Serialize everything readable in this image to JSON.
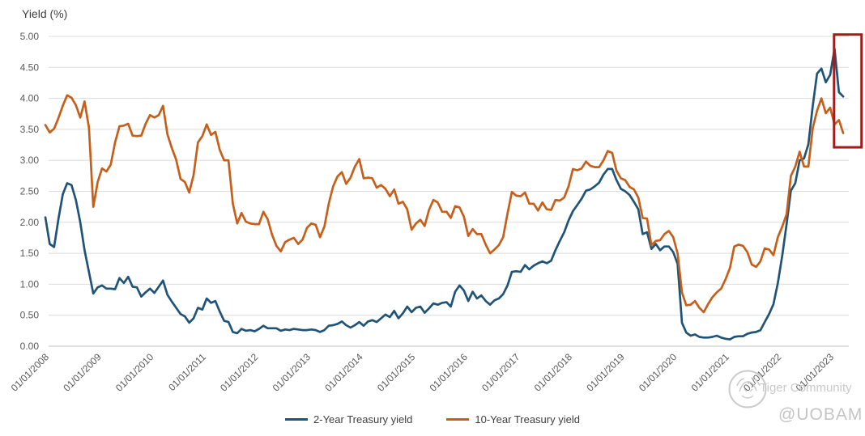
{
  "title": "Yield (%)",
  "watermark": {
    "community_label": "Tiger Community",
    "account_handle": "@UOBAM"
  },
  "chart_data": {
    "type": "line",
    "title": "Yield (%)",
    "ylabel": "Yield (%)",
    "xlabel": "",
    "ylim": [
      0.0,
      5.0
    ],
    "ytick_step": 0.5,
    "y_tick_labels": [
      "0.00",
      "0.50",
      "1.00",
      "1.50",
      "2.00",
      "2.50",
      "3.00",
      "3.50",
      "4.00",
      "4.50",
      "5.00"
    ],
    "x_tick_labels": [
      "01/01/2008",
      "01/01/2009",
      "01/01/2010",
      "01/01/2011",
      "01/01/2012",
      "01/01/2013",
      "01/01/2014",
      "01/01/2015",
      "01/01/2016",
      "01/01/2017",
      "01/01/2018",
      "01/01/2019",
      "01/01/2020",
      "01/01/2021",
      "01/01/2022",
      "01/01/2023"
    ],
    "frequency": "monthly",
    "grid": "horizontal",
    "gridline_color": "#DCDCDC",
    "axis_text_color": "#595959",
    "legend_position": "bottom-center",
    "series": [
      {
        "name": "2-Year Treasury yield",
        "color": "#1F5478",
        "values": [
          2.08,
          1.65,
          1.6,
          2.05,
          2.45,
          2.63,
          2.6,
          2.36,
          2.0,
          1.55,
          1.2,
          0.85,
          0.95,
          0.98,
          0.93,
          0.93,
          0.92,
          1.1,
          1.02,
          1.12,
          0.96,
          0.95,
          0.8,
          0.87,
          0.93,
          0.86,
          0.96,
          1.06,
          0.83,
          0.72,
          0.62,
          0.52,
          0.48,
          0.38,
          0.45,
          0.62,
          0.59,
          0.77,
          0.7,
          0.73,
          0.56,
          0.41,
          0.39,
          0.23,
          0.21,
          0.28,
          0.25,
          0.26,
          0.24,
          0.28,
          0.33,
          0.29,
          0.29,
          0.29,
          0.25,
          0.27,
          0.26,
          0.28,
          0.27,
          0.26,
          0.26,
          0.27,
          0.26,
          0.23,
          0.26,
          0.33,
          0.34,
          0.36,
          0.4,
          0.34,
          0.3,
          0.34,
          0.39,
          0.33,
          0.4,
          0.42,
          0.39,
          0.45,
          0.51,
          0.47,
          0.57,
          0.45,
          0.53,
          0.64,
          0.55,
          0.62,
          0.64,
          0.54,
          0.61,
          0.69,
          0.67,
          0.7,
          0.71,
          0.64,
          0.88,
          0.98,
          0.9,
          0.73,
          0.88,
          0.77,
          0.82,
          0.73,
          0.67,
          0.74,
          0.77,
          0.84,
          0.98,
          1.2,
          1.21,
          1.2,
          1.31,
          1.24,
          1.3,
          1.34,
          1.37,
          1.34,
          1.38,
          1.55,
          1.7,
          1.84,
          2.03,
          2.18,
          2.28,
          2.38,
          2.51,
          2.53,
          2.58,
          2.64,
          2.77,
          2.86,
          2.86,
          2.68,
          2.54,
          2.5,
          2.44,
          2.33,
          2.21,
          1.81,
          1.84,
          1.57,
          1.65,
          1.55,
          1.61,
          1.61,
          1.52,
          1.33,
          0.38,
          0.22,
          0.17,
          0.19,
          0.15,
          0.14,
          0.14,
          0.15,
          0.17,
          0.14,
          0.12,
          0.11,
          0.15,
          0.16,
          0.16,
          0.2,
          0.22,
          0.23,
          0.26,
          0.39,
          0.52,
          0.68,
          1.02,
          1.46,
          1.97,
          2.51,
          2.63,
          3.0,
          3.03,
          3.26,
          3.88,
          4.4,
          4.48,
          4.26,
          4.38,
          4.8,
          4.1,
          4.03
        ]
      },
      {
        "name": "10-Year Treasury yield",
        "color": "#C55F1A",
        "values": [
          3.57,
          3.45,
          3.51,
          3.68,
          3.88,
          4.05,
          4.01,
          3.89,
          3.69,
          3.95,
          3.53,
          2.25,
          2.65,
          2.87,
          2.82,
          2.93,
          3.29,
          3.55,
          3.56,
          3.59,
          3.4,
          3.39,
          3.4,
          3.59,
          3.73,
          3.69,
          3.73,
          3.88,
          3.42,
          3.2,
          3.01,
          2.7,
          2.65,
          2.48,
          2.76,
          3.29,
          3.39,
          3.58,
          3.41,
          3.46,
          3.17,
          3.0,
          3.0,
          2.3,
          1.98,
          2.15,
          2.01,
          1.98,
          1.97,
          1.97,
          2.17,
          2.05,
          1.8,
          1.62,
          1.53,
          1.68,
          1.72,
          1.75,
          1.65,
          1.72,
          1.91,
          1.98,
          1.96,
          1.76,
          1.93,
          2.3,
          2.58,
          2.74,
          2.81,
          2.62,
          2.72,
          2.9,
          3.02,
          2.71,
          2.72,
          2.71,
          2.56,
          2.6,
          2.54,
          2.42,
          2.53,
          2.3,
          2.33,
          2.21,
          1.88,
          1.98,
          2.04,
          1.94,
          2.2,
          2.36,
          2.32,
          2.17,
          2.17,
          2.07,
          2.26,
          2.24,
          2.09,
          1.78,
          1.89,
          1.81,
          1.81,
          1.64,
          1.5,
          1.56,
          1.63,
          1.76,
          2.14,
          2.49,
          2.43,
          2.42,
          2.48,
          2.3,
          2.3,
          2.19,
          2.32,
          2.21,
          2.2,
          2.36,
          2.35,
          2.4,
          2.58,
          2.86,
          2.84,
          2.87,
          2.98,
          2.91,
          2.89,
          2.89,
          3.0,
          3.15,
          3.12,
          2.83,
          2.71,
          2.68,
          2.57,
          2.53,
          2.4,
          2.07,
          2.06,
          1.63,
          1.7,
          1.71,
          1.81,
          1.86,
          1.76,
          1.5,
          0.87,
          0.66,
          0.67,
          0.73,
          0.62,
          0.55,
          0.68,
          0.79,
          0.87,
          0.93,
          1.08,
          1.26,
          1.61,
          1.64,
          1.62,
          1.52,
          1.32,
          1.28,
          1.37,
          1.58,
          1.56,
          1.47,
          1.76,
          1.93,
          2.13,
          2.75,
          2.9,
          3.14,
          2.9,
          2.9,
          3.52,
          3.8,
          4.0,
          3.76,
          3.85,
          3.58,
          3.65,
          3.44
        ]
      }
    ],
    "highlight_box": {
      "color": "#A21C1C",
      "from_month_index": 180.9,
      "to_month_index": 187.2,
      "top_value": 5.03,
      "bottom_value": 3.21
    }
  }
}
